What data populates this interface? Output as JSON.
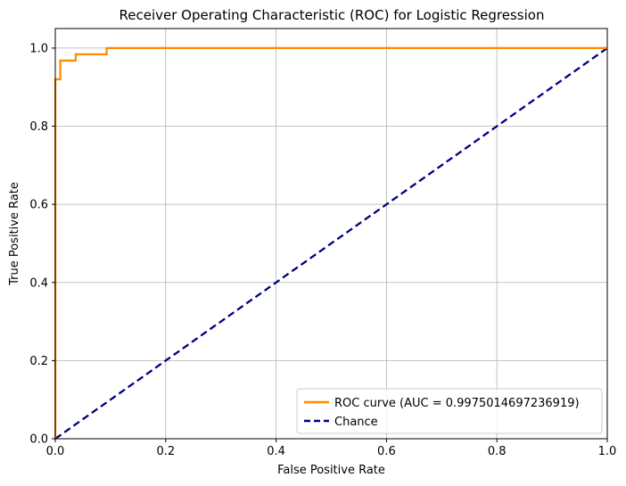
{
  "chart_data": {
    "type": "line",
    "title": "Receiver Operating Characteristic (ROC) for Logistic Regression",
    "xlabel": "False Positive Rate",
    "ylabel": "True Positive Rate",
    "xlim": [
      0.0,
      1.0
    ],
    "ylim": [
      0.0,
      1.05
    ],
    "x_ticks": [
      0.0,
      0.2,
      0.4,
      0.6,
      0.8,
      1.0
    ],
    "y_ticks": [
      0.0,
      0.2,
      0.4,
      0.6,
      0.8,
      1.0
    ],
    "x_tick_labels": [
      "0.0",
      "0.2",
      "0.4",
      "0.6",
      "0.8",
      "1.0"
    ],
    "y_tick_labels": [
      "0.0",
      "0.2",
      "0.4",
      "0.6",
      "0.8",
      "1.0"
    ],
    "grid": true,
    "legend_position": "lower-right",
    "series": [
      {
        "name": "ROC curve (AUC = 0.9975014697236919)",
        "color": "#ff8c00",
        "style": "solid",
        "x": [
          0.0,
          0.0,
          0.009,
          0.009,
          0.037,
          0.037,
          0.093,
          0.093,
          1.0
        ],
        "y": [
          0.0,
          0.92,
          0.92,
          0.968,
          0.968,
          0.984,
          0.984,
          1.0,
          1.0
        ]
      },
      {
        "name": "Chance",
        "color": "#000080",
        "style": "dashed",
        "x": [
          0.0,
          1.0
        ],
        "y": [
          0.0,
          1.0
        ]
      }
    ]
  }
}
